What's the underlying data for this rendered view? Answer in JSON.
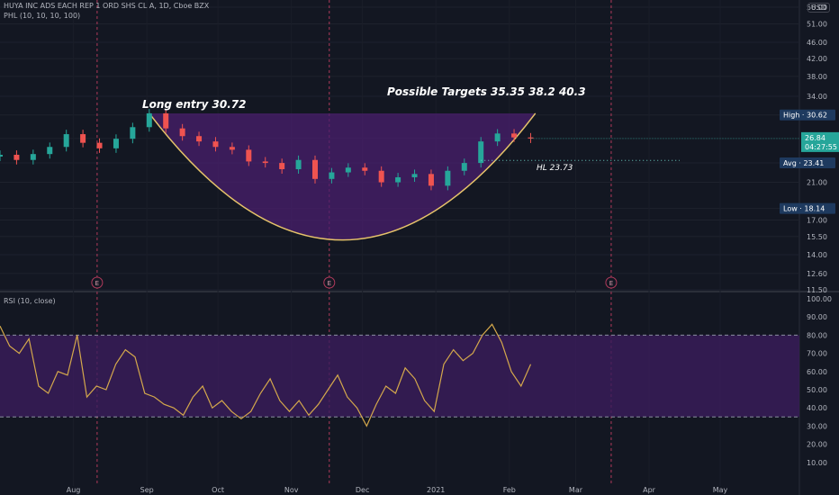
{
  "header": {
    "symbol_line": "HUYA INC ADS EACH REP 1 ORD SHS CL A, 1D, Cboe BZX",
    "indicator_line": "PHL (10, 10, 10, 100)",
    "currency": "USD"
  },
  "annotations": {
    "long_entry": "Long entry 30.72",
    "targets": "Possible Targets  35.35    38.2    40.3",
    "hl": "HL 23.73",
    "earnings_marker": "E"
  },
  "price_badges": {
    "high": "High · 30.62",
    "last_price": "26.84",
    "countdown": "04:27:55",
    "avg": "Avg · 23.41",
    "low": "Low · 18.14"
  },
  "rsi_panel": {
    "title": "RSI (10, close)"
  },
  "colors": {
    "background": "#131722",
    "up": "#26a69a",
    "down": "#ef5350",
    "cup_fill": "#4a1f6e",
    "cup_line": "#e6c36a",
    "rsi_line": "#d4a84c",
    "rsi_band": "#3b1d5c",
    "badge_blue": "#1e3a5f",
    "badge_teal": "#26a69a"
  },
  "chart_data": [
    {
      "type": "candlestick",
      "title": "HUYA INC ADS EACH REP 1 ORD SHS CL A, 1D, Cboe BZX",
      "y_scale": "log",
      "y_ticks": [
        "56.00",
        "51.00",
        "46.00",
        "42.00",
        "38.00",
        "34.00",
        "30.62",
        "26.84",
        "23.41",
        "21.00",
        "18.14",
        "17.00",
        "15.50",
        "14.00",
        "12.60",
        "11.50"
      ],
      "x_ticks": [
        "Aug",
        "Sep",
        "Oct",
        "Nov",
        "Dec",
        "2021",
        "Feb",
        "Mar",
        "Apr",
        "May"
      ],
      "series": [
        {
          "dates": [
            "2020-07-01",
            "2020-07-08",
            "2020-07-15",
            "2020-07-22",
            "2020-07-29",
            "2020-08-05",
            "2020-08-12",
            "2020-08-19",
            "2020-08-26",
            "2020-09-02",
            "2020-09-09",
            "2020-09-16",
            "2020-09-23",
            "2020-09-30",
            "2020-10-07",
            "2020-10-14",
            "2020-10-21",
            "2020-10-28",
            "2020-11-04",
            "2020-11-11",
            "2020-11-18",
            "2020-11-25",
            "2020-12-02",
            "2020-12-09",
            "2020-12-16",
            "2020-12-23",
            "2020-12-30",
            "2021-01-06",
            "2021-01-13",
            "2021-01-20",
            "2021-01-27",
            "2021-02-03",
            "2021-02-10"
          ],
          "close": [
            24.5,
            23.8,
            24.6,
            25.6,
            27.5,
            26.2,
            25.4,
            26.8,
            28.6,
            30.9,
            28.4,
            27.2,
            26.4,
            25.6,
            25.2,
            23.6,
            23.4,
            22.6,
            23.8,
            21.4,
            22.2,
            22.8,
            22.4,
            21.0,
            21.6,
            22.0,
            20.6,
            22.4,
            23.4,
            26.4,
            27.6,
            27.0,
            26.84
          ]
        }
      ]
    },
    {
      "type": "line",
      "title": "RSI (10, close)",
      "y_ticks": [
        "100.00",
        "90.00",
        "80.00",
        "70.00",
        "60.00",
        "50.00",
        "40.00",
        "30.00",
        "20.00",
        "10.00"
      ],
      "bands": [
        35,
        80
      ],
      "ylim": [
        0,
        100
      ],
      "series": [
        {
          "values": [
            85,
            74,
            70,
            78,
            52,
            48,
            60,
            58,
            80,
            46,
            52,
            50,
            64,
            72,
            68,
            48,
            46,
            42,
            40,
            36,
            46,
            52,
            40,
            44,
            38,
            34,
            38,
            48,
            56,
            44,
            38,
            44,
            36,
            42,
            50,
            58,
            46,
            40,
            30,
            42,
            52,
            48,
            62,
            56,
            44,
            38,
            64,
            72,
            66,
            70,
            80,
            86,
            76,
            60,
            52,
            64
          ]
        }
      ]
    }
  ]
}
